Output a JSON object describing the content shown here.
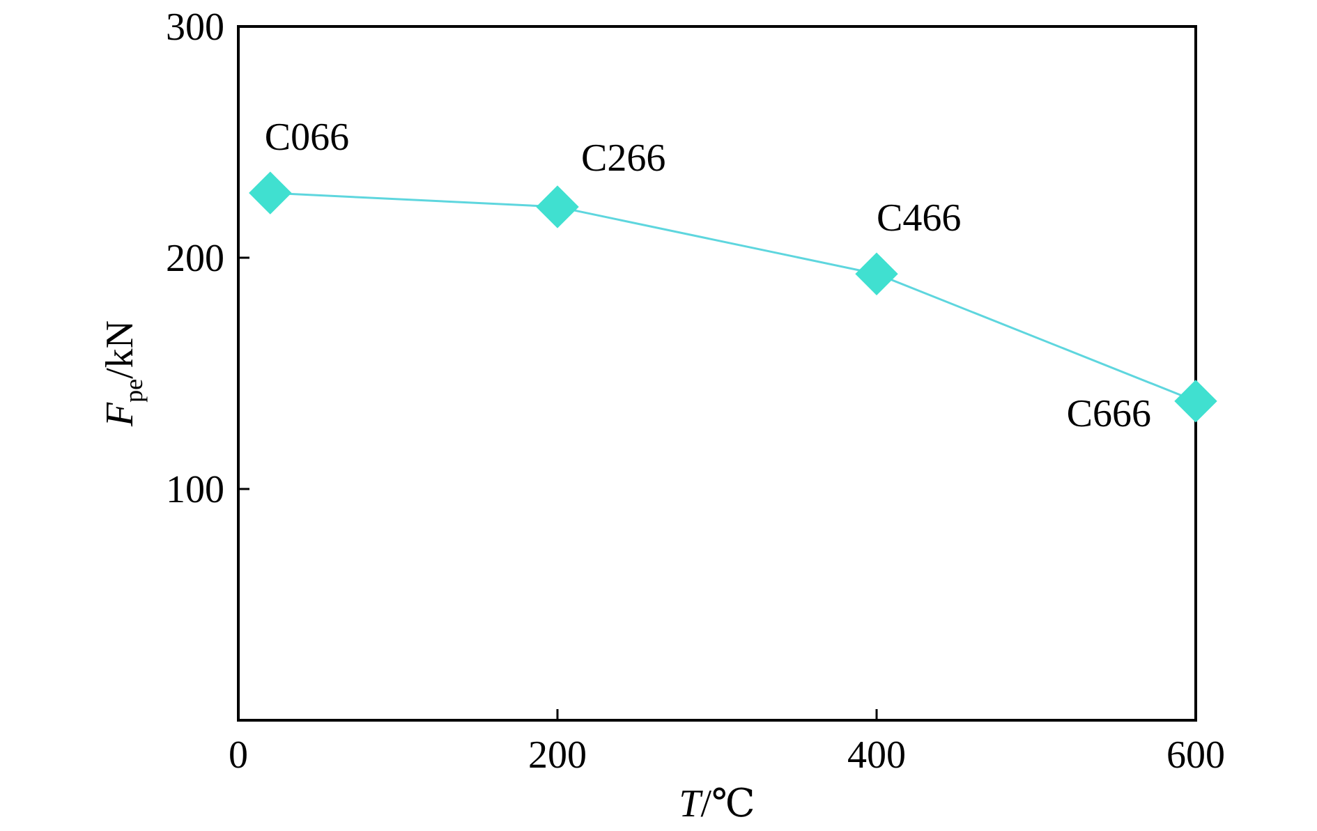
{
  "chart_data": {
    "type": "line",
    "title": "",
    "xlabel": {
      "symbol": "T",
      "unit": "/℃"
    },
    "ylabel": {
      "symbol": "F",
      "subscript": "pe",
      "unit": "/kN"
    },
    "xlim": [
      0,
      600
    ],
    "ylim": [
      0,
      300
    ],
    "x_ticks": [
      0,
      200,
      400,
      600
    ],
    "x_tick_labels": [
      "0",
      "200",
      "400",
      "600"
    ],
    "y_ticks": [
      100,
      200,
      300
    ],
    "y_tick_labels": [
      "100",
      "200",
      "300"
    ],
    "grid": false,
    "series": [
      {
        "marker": "diamond",
        "color": "#40E0D0",
        "points": [
          {
            "x": 20,
            "y": 228,
            "label": "C066"
          },
          {
            "x": 200,
            "y": 222,
            "label": "C266"
          },
          {
            "x": 400,
            "y": 193,
            "label": "C466"
          },
          {
            "x": 600,
            "y": 138,
            "label": "C666"
          }
        ]
      }
    ]
  }
}
